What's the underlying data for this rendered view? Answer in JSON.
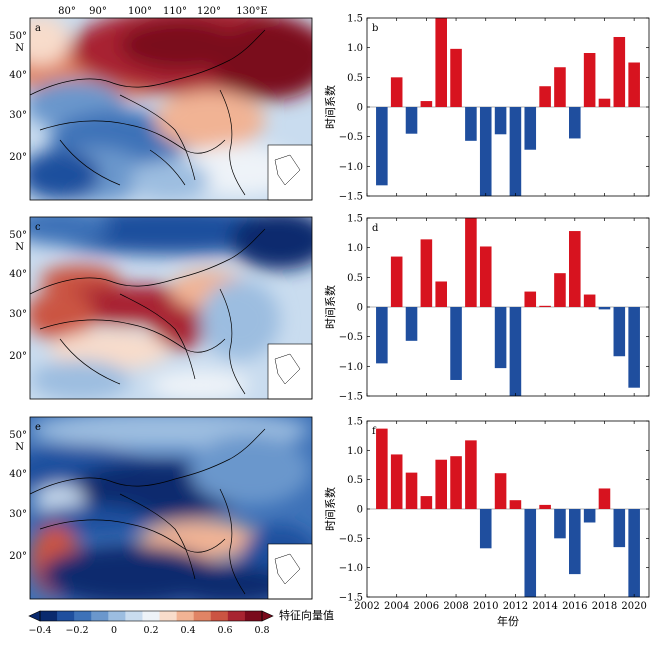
{
  "map_panels": [
    {
      "letter": "a"
    },
    {
      "letter": "c"
    },
    {
      "letter": "e"
    }
  ],
  "map_axes": {
    "lon_labels": [
      "80°",
      "90°",
      "100°",
      "110°",
      "120°",
      "130°E"
    ],
    "lat_labels": [
      "50°",
      "40°",
      "30°",
      "20°"
    ],
    "lat_n": "N"
  },
  "colorbar": {
    "label": "特征向量值",
    "tick_labels": [
      "−0.4",
      "−0.2",
      "0",
      "0.2",
      "0.4",
      "0.6",
      "0.8"
    ],
    "colors": [
      "#0a2a6e",
      "#1f4f9e",
      "#3e72b8",
      "#6b97cc",
      "#9cbde0",
      "#c9dcef",
      "#eef3f8",
      "#f8dccb",
      "#f1b394",
      "#e08465",
      "#cb5442",
      "#a82431",
      "#7a0a1c"
    ]
  },
  "bar_colors": {
    "positive": "#d7131f",
    "negative": "#1f4e9e"
  },
  "chart_data": [
    {
      "type": "bar",
      "panel": "b",
      "x": [
        2003,
        2004,
        2005,
        2006,
        2007,
        2008,
        2009,
        2010,
        2011,
        2012,
        2013,
        2014,
        2015,
        2016,
        2017,
        2018,
        2019,
        2020
      ],
      "values": [
        -1.32,
        0.5,
        -0.45,
        0.1,
        1.5,
        0.98,
        -0.57,
        -1.5,
        -0.46,
        -1.5,
        -0.72,
        0.35,
        0.67,
        -0.53,
        0.91,
        0.14,
        1.18,
        0.75
      ],
      "ylim": [
        -1.5,
        1.5
      ],
      "yticks": [
        -1.5,
        -1.0,
        -0.5,
        0,
        0.5,
        1.0,
        1.5
      ],
      "ytick_labels": [
        "−1.5",
        "−1.0",
        "−0.5",
        "0",
        "0.5",
        "1.0",
        "1.5"
      ],
      "xlim": [
        2002,
        2021
      ],
      "xticks": [
        2002,
        2004,
        2006,
        2008,
        2010,
        2012,
        2014,
        2016,
        2018,
        2020
      ],
      "ylabel": "时间系数",
      "xlabel": ""
    },
    {
      "type": "bar",
      "panel": "d",
      "x": [
        2003,
        2004,
        2005,
        2006,
        2007,
        2008,
        2009,
        2010,
        2011,
        2012,
        2013,
        2014,
        2015,
        2016,
        2017,
        2018,
        2019,
        2020
      ],
      "values": [
        -0.95,
        0.85,
        -0.57,
        1.14,
        0.43,
        -1.23,
        1.5,
        1.02,
        -1.03,
        -1.5,
        0.26,
        0.02,
        0.57,
        1.28,
        0.21,
        -0.04,
        -0.83,
        -1.36
      ],
      "ylim": [
        -1.5,
        1.5
      ],
      "yticks": [
        -1.5,
        -1.0,
        -0.5,
        0,
        0.5,
        1.0,
        1.5
      ],
      "ytick_labels": [
        "−1.5",
        "−1.0",
        "−0.5",
        "0",
        "0.5",
        "1.0",
        "1.5"
      ],
      "xlim": [
        2002,
        2021
      ],
      "xticks": [
        2002,
        2004,
        2006,
        2008,
        2010,
        2012,
        2014,
        2016,
        2018,
        2020
      ],
      "ylabel": "时间系数",
      "xlabel": ""
    },
    {
      "type": "bar",
      "panel": "f",
      "x": [
        2003,
        2004,
        2005,
        2006,
        2007,
        2008,
        2009,
        2010,
        2011,
        2012,
        2013,
        2014,
        2015,
        2016,
        2017,
        2018,
        2019,
        2020
      ],
      "values": [
        1.37,
        0.93,
        0.62,
        0.22,
        0.84,
        0.9,
        1.17,
        -0.67,
        0.61,
        0.15,
        -1.5,
        0.07,
        -0.5,
        -1.11,
        -0.23,
        0.35,
        -0.65,
        -1.5
      ],
      "ylim": [
        -1.5,
        1.5
      ],
      "yticks": [
        -1.5,
        -1.0,
        -0.5,
        0,
        0.5,
        1.0,
        1.5
      ],
      "ytick_labels": [
        "−1.5",
        "−1.0",
        "−0.5",
        "0",
        "0.5",
        "1.0",
        "1.5"
      ],
      "xlim": [
        2002,
        2021
      ],
      "xticks": [
        2002,
        2004,
        2006,
        2008,
        2010,
        2012,
        2014,
        2016,
        2018,
        2020
      ],
      "ylabel": "时间系数",
      "xlabel": "年份"
    }
  ]
}
